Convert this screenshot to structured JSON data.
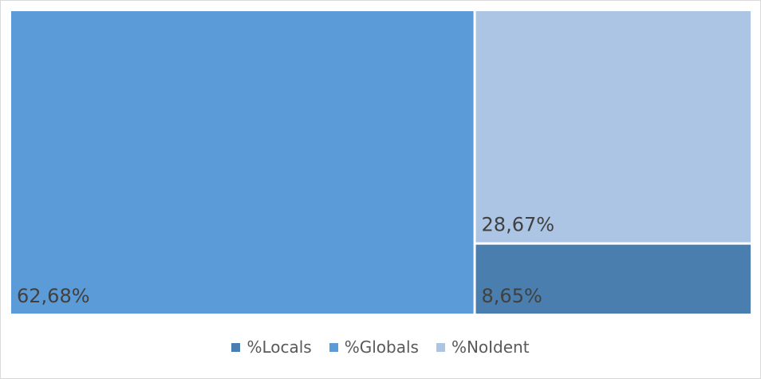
{
  "chart_data": {
    "type": "treemap",
    "title": "",
    "items": [
      {
        "name": "%Locals",
        "value": 8.65,
        "label": "8,65%",
        "color": "#4a7eae"
      },
      {
        "name": "%Globals",
        "value": 62.68,
        "label": "62,68%",
        "color": "#5a9bd8"
      },
      {
        "name": "%NoIdent",
        "value": 28.67,
        "label": "28,67%",
        "color": "#adc5e4"
      }
    ],
    "legend_position": "bottom",
    "legend": [
      {
        "label": "%Locals",
        "color": "#4a7eae"
      },
      {
        "label": "%Globals",
        "color": "#5a9bd8"
      },
      {
        "label": "%NoIdent",
        "color": "#adc5e4"
      }
    ]
  }
}
